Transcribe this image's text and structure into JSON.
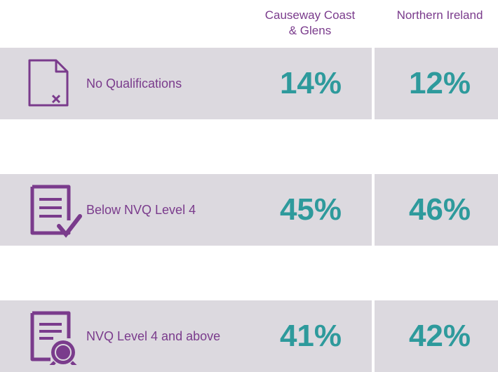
{
  "header": {
    "columns": [
      [
        "Causeway Coast",
        "& Glens"
      ],
      [
        "Northern Ireland"
      ]
    ]
  },
  "table": {
    "rows": [
      {
        "label": "No Qualifications",
        "values": [
          "14%",
          "12%"
        ]
      },
      {
        "label": "Below NVQ Level 4",
        "values": [
          "45%",
          "46%"
        ]
      },
      {
        "label": "NVQ Level 4 and above",
        "values": [
          "41%",
          "42%"
        ]
      }
    ]
  }
}
